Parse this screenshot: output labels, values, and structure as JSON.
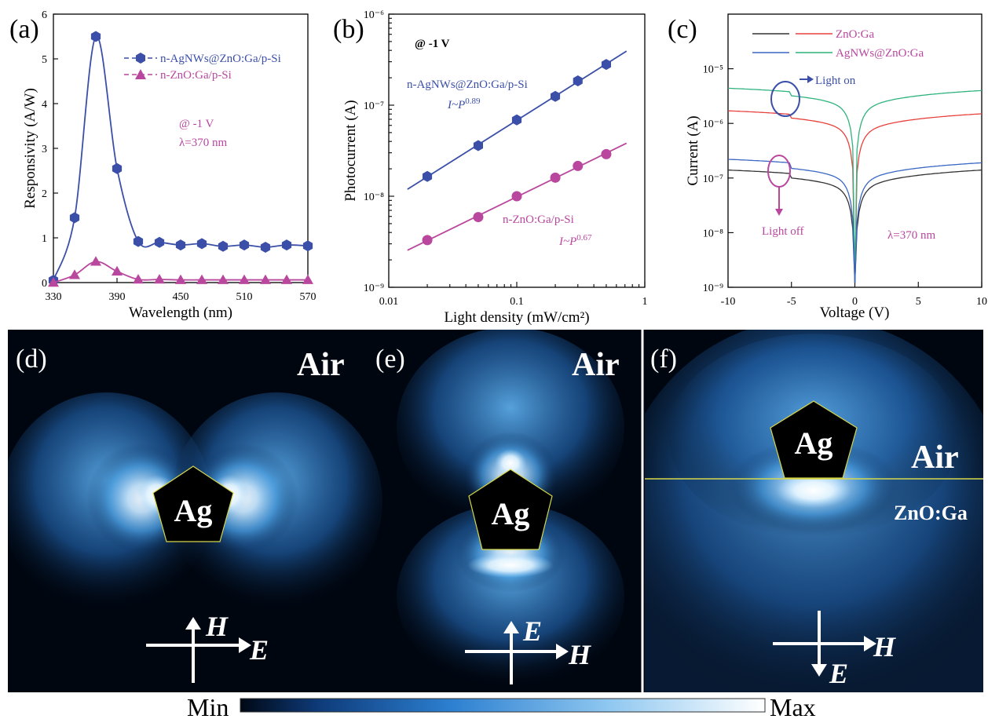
{
  "chart_data": [
    {
      "panel": "(a)",
      "type": "line",
      "xlabel": "Wavelength (nm)",
      "ylabel": "Responsivity (A/W)",
      "xlim": [
        330,
        570
      ],
      "ylim": [
        0,
        6
      ],
      "xticks": [
        "330",
        "390",
        "450",
        "510",
        "570"
      ],
      "yticks": [
        "0",
        "1",
        "2",
        "3",
        "4",
        "5",
        "6"
      ],
      "annotation": [
        "@ -1 V",
        "λ=370 nm"
      ],
      "series": [
        {
          "name": "n-AgNWs@ZnO:Ga/p-Si",
          "color": "#3b4fa8",
          "marker": "hexagon",
          "x": [
            330,
            350,
            370,
            390,
            410,
            430,
            450,
            470,
            490,
            510,
            530,
            550,
            570
          ],
          "y": [
            0.05,
            1.45,
            5.5,
            2.55,
            0.92,
            0.9,
            0.84,
            0.87,
            0.81,
            0.84,
            0.79,
            0.84,
            0.82
          ]
        },
        {
          "name": "n-ZnO:Ga/p-Si",
          "color": "#b9479e",
          "marker": "triangle",
          "x": [
            330,
            350,
            370,
            390,
            410,
            430,
            450,
            470,
            490,
            510,
            530,
            550,
            570
          ],
          "y": [
            0.0,
            0.17,
            0.47,
            0.25,
            0.07,
            0.07,
            0.06,
            0.06,
            0.06,
            0.06,
            0.06,
            0.06,
            0.06
          ]
        }
      ]
    },
    {
      "panel": "(b)",
      "type": "scatter",
      "xlabel": "Light density (mW/cm²)",
      "ylabel": "Photocurrent (A)",
      "xscale": "log",
      "yscale": "log",
      "xlim": [
        0.01,
        1
      ],
      "ylim": [
        1e-09,
        1e-06
      ],
      "xticks": [
        "0.01",
        "0.1",
        "1"
      ],
      "yticks": [
        "10⁻⁹",
        "10⁻⁸",
        "10⁻⁷",
        "10⁻⁶"
      ],
      "annotation": "@ -1 V",
      "series": [
        {
          "name": "n-AgNWs@ZnO:Ga/p-Si",
          "fit": "I~P0.89",
          "color": "#3b4fa8",
          "marker": "hexagon",
          "x": [
            0.02,
            0.05,
            0.1,
            0.2,
            0.3,
            0.5
          ],
          "y": [
            1.65e-08,
            3.6e-08,
            6.9e-08,
            1.25e-07,
            1.85e-07,
            2.8e-07
          ]
        },
        {
          "name": "n-ZnO:Ga/p-Si",
          "fit": "I~P0.67",
          "color": "#b9479e",
          "marker": "circle",
          "x": [
            0.02,
            0.05,
            0.1,
            0.2,
            0.3,
            0.5
          ],
          "y": [
            3.3e-09,
            5.9e-09,
            1e-08,
            1.6e-08,
            2.15e-08,
            2.9e-08
          ]
        }
      ]
    },
    {
      "panel": "(c)",
      "type": "line",
      "xlabel": "Voltage (V)",
      "ylabel": "Current (A)",
      "yscale": "log",
      "xlim": [
        -10,
        10
      ],
      "ylim": [
        1e-09,
        0.0001
      ],
      "xticks": [
        "-10",
        "-5",
        "0",
        "5",
        "10"
      ],
      "yticks": [
        "10⁻⁹",
        "10⁻⁸",
        "10⁻⁷",
        "10⁻⁶",
        "10⁻⁵"
      ],
      "annotations": [
        "Light on",
        "Light off",
        "λ=370 nm"
      ],
      "legend": [
        {
          "name": "ZnO:Ga",
          "dark": "#333333",
          "light": "#e8413c"
        },
        {
          "name": "AgNWs@ZnO:Ga",
          "dark": "#3a66c4",
          "light": "#2fb37d"
        }
      ],
      "series": [
        {
          "name": "ZnO:Ga light on",
          "color": "#e8413c",
          "neg": [
            1.7e-06,
            1.25e-06
          ],
          "pos": [
            1.5e-06,
            1.5e-06
          ]
        },
        {
          "name": "AgNWs@ZnO:Ga light on",
          "color": "#2fb37d",
          "neg": [
            4.4e-06,
            3.2e-06
          ],
          "pos": [
            4e-06,
            4e-06
          ]
        },
        {
          "name": "ZnO:Ga light off",
          "color": "#333333",
          "neg": [
            1.4e-07,
            1e-07
          ],
          "pos": [
            1.4e-07,
            1.4e-07
          ]
        },
        {
          "name": "AgNWs@ZnO:Ga light off",
          "color": "#3a66c4",
          "neg": [
            2.2e-07,
            1.5e-07
          ],
          "pos": [
            1.9e-07,
            1.9e-07
          ]
        }
      ]
    }
  ],
  "field_maps": {
    "d": {
      "label": "(d)",
      "medium": "Air",
      "particle": "Ag",
      "arrow_right": "E",
      "arrow_up": "H"
    },
    "e": {
      "label": "(e)",
      "medium": "Air",
      "particle": "Ag",
      "arrow_right": "H",
      "arrow_up": "E"
    },
    "f": {
      "label": "(f)",
      "medium": "Air",
      "substrate": "ZnO:Ga",
      "particle": "Ag",
      "arrow_right": "H",
      "arrow_down": "E"
    }
  },
  "colorbar": {
    "min_label": "Min",
    "max_label": "Max"
  }
}
